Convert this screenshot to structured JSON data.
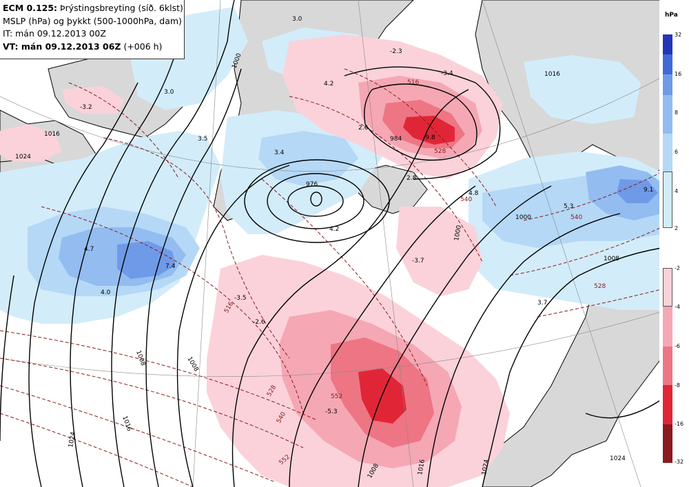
{
  "header": {
    "line1_bold": "ECM 0.125:",
    "line1_rest": " Þrýstingsbreyting (síð. 6klst)",
    "line2": "MSLP (hPa) og þykkt (500-1000hPa, dam)",
    "line3": "IT: mán 09.12.2013 00Z",
    "line4_bold": "VT: mán 09.12.2013 06Z",
    "line4_rest": " (+006 h)"
  },
  "legend": {
    "unit": "hPa",
    "rise": {
      "ticks": [
        "32",
        "16",
        "8",
        "6",
        "4",
        "2"
      ],
      "colors": [
        "#2336b8",
        "#3f6ad8",
        "#6f9ae8",
        "#93bcf0",
        "#b4d8f6",
        "#d2ecfa"
      ]
    },
    "fall": {
      "ticks": [
        "-2",
        "-4",
        "-6",
        "-8",
        "-16",
        "-32"
      ],
      "colors": [
        "#fbd2da",
        "#f5a7b4",
        "#ee7584",
        "#e02636",
        "#8c1a20"
      ]
    }
  },
  "map_labels": {
    "isobars": [
      "1000",
      "1016",
      "1024",
      "1008",
      "1016",
      "1024",
      "1008",
      "1000",
      "984",
      "976",
      "1000",
      "1008",
      "1016",
      "1024",
      "1008",
      "1016",
      "1024"
    ],
    "thickness": [
      "516",
      "528",
      "540",
      "516",
      "540",
      "552",
      "528",
      "552",
      "540",
      "528"
    ],
    "tendency": [
      "-3.2",
      "3.0",
      "3.5",
      "3.4",
      "4.2",
      "-2.3",
      "-3.4",
      "2.6",
      "-9.8",
      "2.8",
      "4.2",
      "4.7",
      "7.4",
      "4.0",
      "-3.5",
      "-2.6",
      "-3.7",
      "4.8",
      "5.3",
      "9.1",
      "3.7",
      "-5.3",
      "3.0"
    ]
  }
}
